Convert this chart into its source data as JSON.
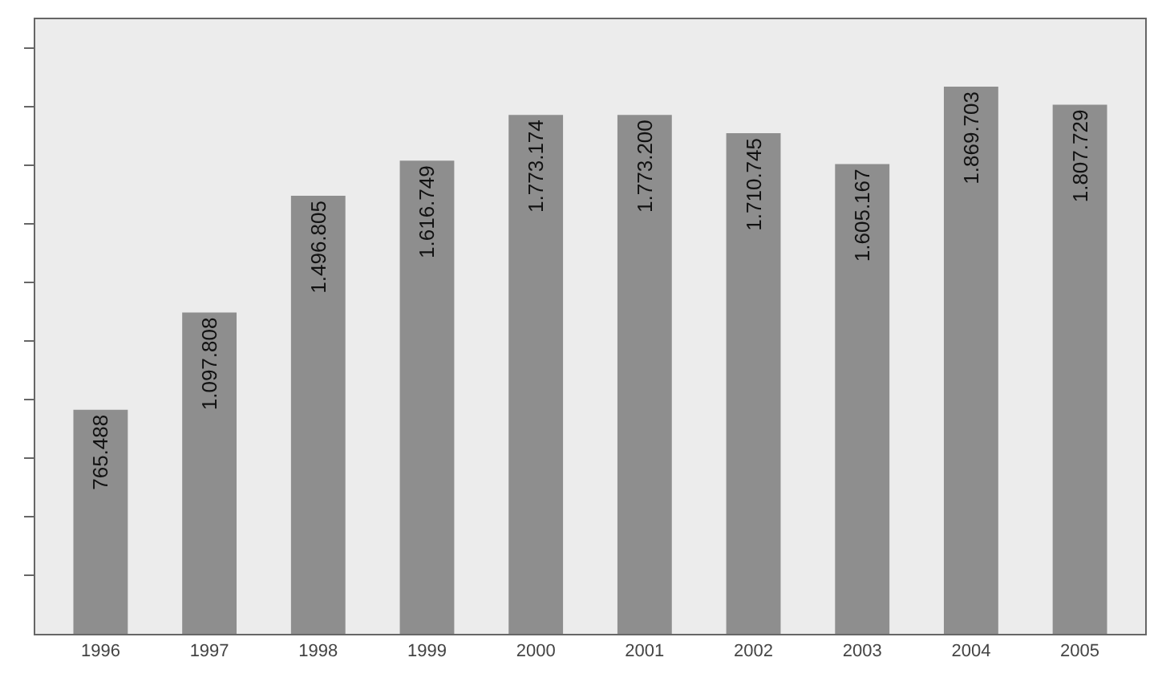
{
  "chart_data": {
    "type": "bar",
    "categories": [
      "1996",
      "1997",
      "1998",
      "1999",
      "2000",
      "2001",
      "2002",
      "2003",
      "2004",
      "2005"
    ],
    "values": [
      765488,
      1097808,
      1496805,
      1616749,
      1773174,
      1773200,
      1710745,
      1605167,
      1869703,
      1807729
    ],
    "value_labels": [
      "765.488",
      "1.097.808",
      "1.496.805",
      "1.616.749",
      "1.773.174",
      "1.773.200",
      "1.710.745",
      "1.605.167",
      "1.869.703",
      "1.807.729"
    ],
    "color": "#8e8e8e",
    "ylim": [
      0,
      2100000
    ],
    "yticks": [
      {
        "value": 200000,
        "label": null
      },
      {
        "value": 400000,
        "label": null
      },
      {
        "value": 600000,
        "label": null
      },
      {
        "value": 800000,
        "label": null
      },
      {
        "value": 1000000,
        "label": null
      },
      {
        "value": 1200000,
        "label": null
      },
      {
        "value": 1400000,
        "label": null
      },
      {
        "value": 1600000,
        "label": null
      },
      {
        "value": 1800000,
        "label": null
      },
      {
        "value": 2000000,
        "label": null
      }
    ],
    "grid": false,
    "legend": false,
    "tick_labels": "x"
  }
}
